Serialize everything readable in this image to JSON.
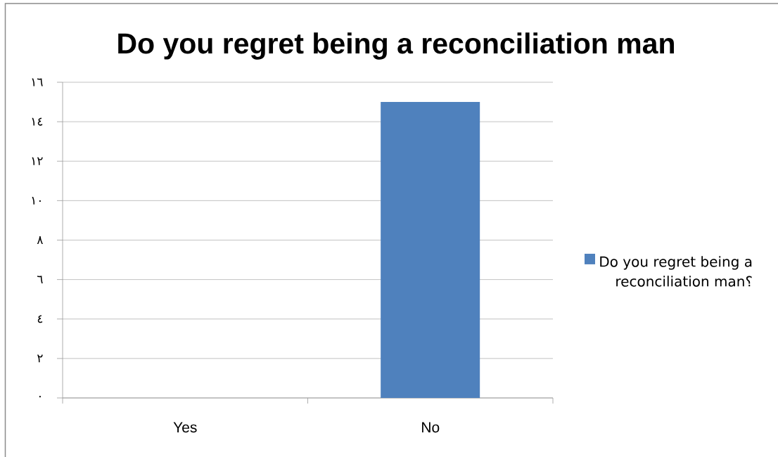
{
  "chart_data": {
    "type": "bar",
    "title": "Do you regret being a reconciliation man",
    "categories": [
      "Yes",
      "No"
    ],
    "series": [
      {
        "name": "Do you regret being a reconciliation man؟",
        "color": "#4f81bd",
        "values": [
          0,
          15
        ]
      }
    ],
    "ylim": [
      0,
      16
    ],
    "yticks": [
      {
        "value": 0,
        "label": "٠"
      },
      {
        "value": 2,
        "label": "٢"
      },
      {
        "value": 4,
        "label": "٤"
      },
      {
        "value": 6,
        "label": "٦"
      },
      {
        "value": 8,
        "label": "٨"
      },
      {
        "value": 10,
        "label": "١٠"
      },
      {
        "value": 12,
        "label": "١٢"
      },
      {
        "value": 14,
        "label": "١٤"
      },
      {
        "value": 16,
        "label": "١٦"
      }
    ],
    "grid": "y",
    "legend": "right"
  }
}
